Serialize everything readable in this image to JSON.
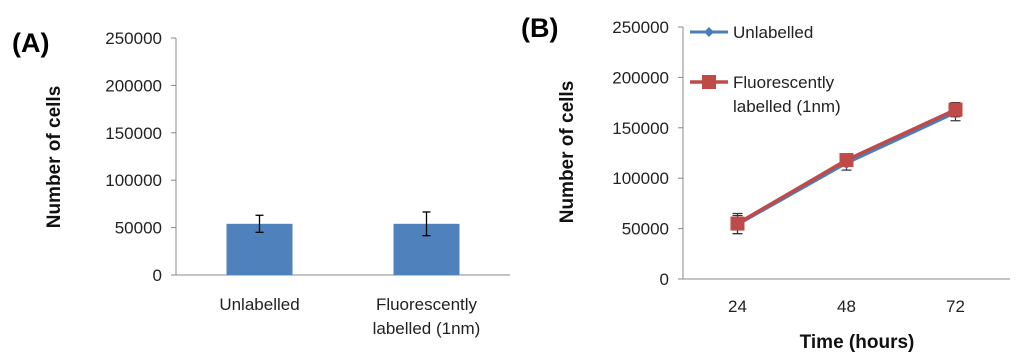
{
  "chart_data": [
    {
      "panel_label": "(A)",
      "type": "bar",
      "categories": [
        [
          "Unlabelled"
        ],
        [
          "Fluorescently",
          "labelled (1nm)"
        ]
      ],
      "values": [
        54000,
        54000
      ],
      "error": [
        9000,
        12500
      ],
      "ylabel": "Number of cells",
      "xlabel": "",
      "ylim": [
        0,
        250000
      ],
      "yticks": [
        "0",
        "50000",
        "100000",
        "150000",
        "200000",
        "250000"
      ],
      "bar_color": "#4f81bd",
      "grid": false
    },
    {
      "panel_label": "(B)",
      "type": "line",
      "x": [
        "24",
        "48",
        "72"
      ],
      "xlabel": "Time (hours)",
      "ylabel": "Number of cells",
      "ylim": [
        0,
        250000
      ],
      "yticks": [
        "0",
        "50000",
        "100000",
        "150000",
        "200000",
        "250000"
      ],
      "legend_position": "top-left",
      "grid": false,
      "series": [
        {
          "name": [
            "Unlabelled"
          ],
          "values": [
            54000,
            115000,
            165000
          ],
          "error": [
            9000,
            7000,
            8000
          ],
          "color": "#4a7ebb",
          "marker": "diamond"
        },
        {
          "name": [
            "Fluorescently",
            "labelled (1nm)"
          ],
          "values": [
            55000,
            118000,
            168000
          ],
          "error": [
            10000,
            6000,
            7000
          ],
          "color": "#be4b48",
          "marker": "square"
        }
      ]
    }
  ]
}
